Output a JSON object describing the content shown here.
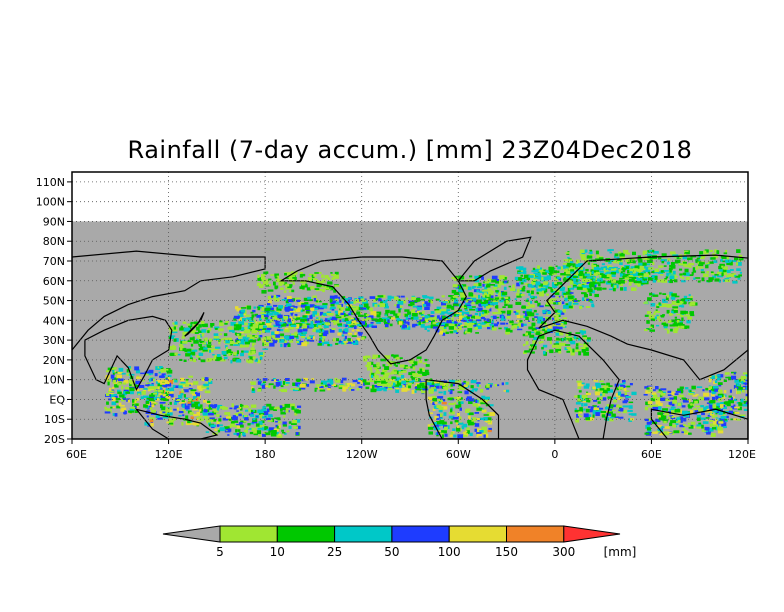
{
  "title": "Rainfall (7-day accum.) [mm] 23Z04Dec2018",
  "map": {
    "lat_labels": [
      "110N",
      "100N",
      "90N",
      "80N",
      "70N",
      "60N",
      "50N",
      "40N",
      "30N",
      "20N",
      "10N",
      "EQ",
      "10S",
      "20S"
    ],
    "lon_labels": [
      "60E",
      "120E",
      "180",
      "120W",
      "60W",
      "0",
      "60E",
      "120E"
    ],
    "lat_range": [
      -20,
      115
    ],
    "lon_range": [
      60,
      480
    ],
    "data_lat_range": [
      -20,
      90
    ],
    "no_data_color": "#a9a9a9",
    "grid": "dotted"
  },
  "colorbar": {
    "levels": [
      "5",
      "10",
      "25",
      "50",
      "100",
      "150",
      "300"
    ],
    "unit": "[mm]",
    "colors": [
      "#a9a9a9",
      "#a0e632",
      "#00c800",
      "#00c8c8",
      "#1e3cff",
      "#e6dc32",
      "#f08228",
      "#ff3232"
    ]
  }
}
